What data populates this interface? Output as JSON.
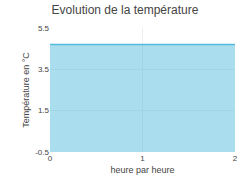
{
  "chart_data": {
    "type": "area",
    "title": "Evolution de la température",
    "x": [
      0,
      2
    ],
    "values": [
      4.7,
      4.7
    ],
    "color": "#55bbdd",
    "xlabel": "heure par heure",
    "ylabel": "Température en °C",
    "xlim": [
      0,
      2
    ],
    "ylim": [
      -0.5,
      5.5
    ],
    "xticks": [
      0,
      1,
      2
    ],
    "yticks": [
      -0.5,
      1.5,
      3.5,
      5.5
    ],
    "grid": true
  }
}
